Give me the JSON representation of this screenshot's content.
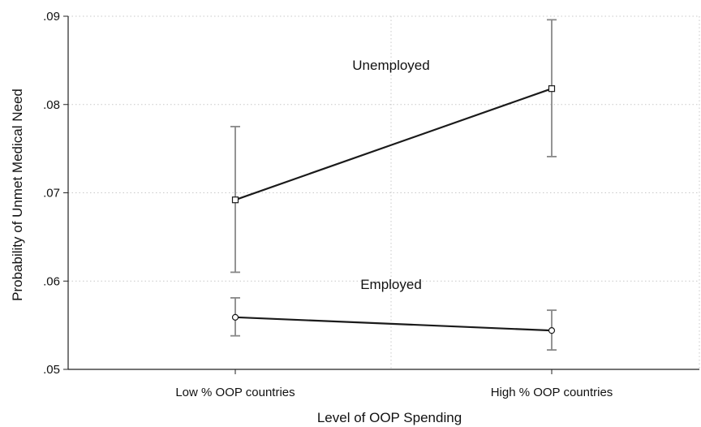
{
  "chart_data": {
    "type": "line",
    "title": "",
    "xlabel": "Level of OOP Spending",
    "ylabel": "Probability of Unmet Medical Need",
    "categories": [
      "Low % OOP countries",
      "High % OOP countries"
    ],
    "ylim": [
      0.05,
      0.09
    ],
    "yticks": [
      0.05,
      0.06,
      0.07,
      0.08,
      0.09
    ],
    "ytick_labels": [
      ".05",
      ".06",
      ".07",
      ".08",
      ".09"
    ],
    "grid": true,
    "series": [
      {
        "name": "Unemployed",
        "marker": "square",
        "values": [
          0.0692,
          0.0818
        ],
        "ci_low": [
          0.061,
          0.0741
        ],
        "ci_high": [
          0.0775,
          0.0896
        ]
      },
      {
        "name": "Employed",
        "marker": "circle",
        "values": [
          0.0559,
          0.0544
        ],
        "ci_low": [
          0.0538,
          0.0522
        ],
        "ci_high": [
          0.0581,
          0.0567
        ]
      }
    ],
    "colors": {
      "line": "#1a1a1a",
      "errorbar": "#888888",
      "grid": "#c8c8c8",
      "axis": "#222222"
    }
  }
}
